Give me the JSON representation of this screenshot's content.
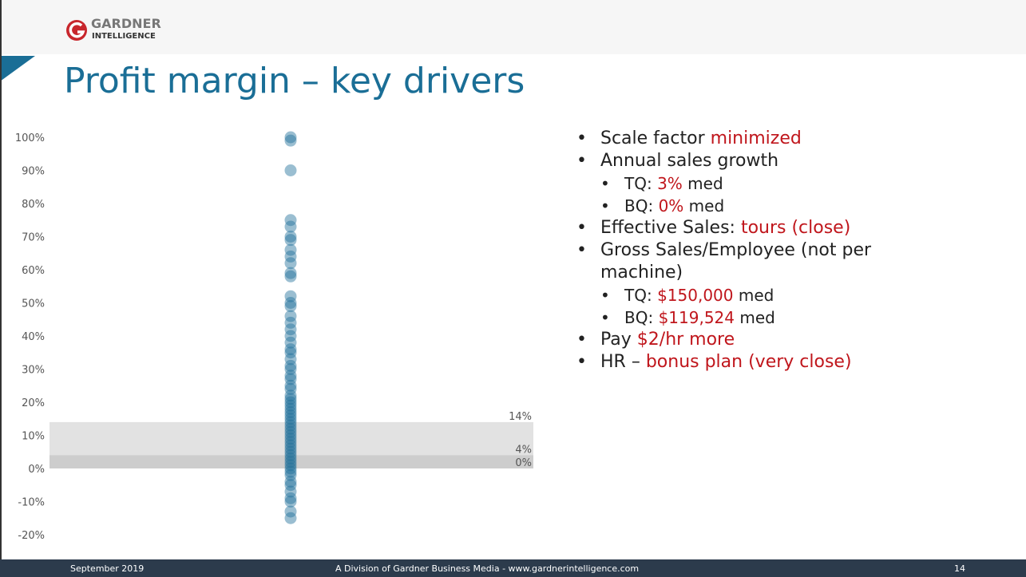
{
  "header": {
    "logo_top": "GARDNER",
    "logo_bottom": "INTELLIGENCE"
  },
  "title": "Profit margin – key drivers",
  "chart_data": {
    "type": "strip",
    "color": "#1f6f9a",
    "values": [
      100,
      99,
      90,
      75,
      73,
      70,
      69,
      66,
      64,
      62,
      59,
      58,
      52,
      50,
      49,
      46,
      44,
      42,
      40,
      38,
      36,
      35,
      33,
      31,
      30,
      28,
      27,
      25,
      24,
      22,
      21,
      20,
      19,
      18,
      17,
      16,
      15,
      14,
      13,
      12,
      11,
      10,
      9,
      8,
      7,
      6,
      5,
      4,
      3,
      2,
      1,
      0,
      -1,
      -2,
      -4,
      -5,
      -7,
      -9,
      -10,
      -13,
      -15
    ],
    "ylim": [
      -20,
      100
    ],
    "yticks": [
      {
        "value": -20,
        "label": "-20%"
      },
      {
        "value": -10,
        "label": "-10%"
      },
      {
        "value": 0,
        "label": "0%"
      },
      {
        "value": 10,
        "label": "10%"
      },
      {
        "value": 20,
        "label": "20%"
      },
      {
        "value": 30,
        "label": "30%"
      },
      {
        "value": 40,
        "label": "40%"
      },
      {
        "value": 50,
        "label": "50%"
      },
      {
        "value": 60,
        "label": "60%"
      },
      {
        "value": 70,
        "label": "70%"
      },
      {
        "value": 80,
        "label": "80%"
      },
      {
        "value": 90,
        "label": "90%"
      },
      {
        "value": 100,
        "label": "100%"
      }
    ],
    "reference_lines": [
      {
        "value": 14,
        "label": "14%",
        "color": "#e2e2e2"
      },
      {
        "value": 4,
        "label": "4%",
        "color": "#cdcdcd"
      },
      {
        "value": 0,
        "label": "0%"
      }
    ]
  },
  "bullets": [
    {
      "level": 1,
      "text": "Scale factor ",
      "highlight": "minimized"
    },
    {
      "level": 1,
      "text": "Annual sales growth"
    },
    {
      "level": 2,
      "text": "TQ: ",
      "highlight": "3%",
      "after": " med"
    },
    {
      "level": 2,
      "text": "BQ: ",
      "highlight": "0%",
      "after": " med"
    },
    {
      "level": 1,
      "text": "Effective Sales: ",
      "highlight": "tours (close)"
    },
    {
      "level": 1,
      "text": "Gross Sales/Employee (not per machine)"
    },
    {
      "level": 2,
      "text": "TQ: ",
      "highlight": "$150,000",
      "after": " med"
    },
    {
      "level": 2,
      "text": "BQ: ",
      "highlight": "$119,524",
      "after": " med"
    },
    {
      "level": 1,
      "text": "Pay ",
      "highlight": "$2/hr more"
    },
    {
      "level": 1,
      "text": "HR – ",
      "highlight": "bonus plan (very close)"
    }
  ],
  "footer": {
    "date": "September 2019",
    "center": "A Division of Gardner Business Media - www.gardnerintelligence.com",
    "page": "14"
  }
}
